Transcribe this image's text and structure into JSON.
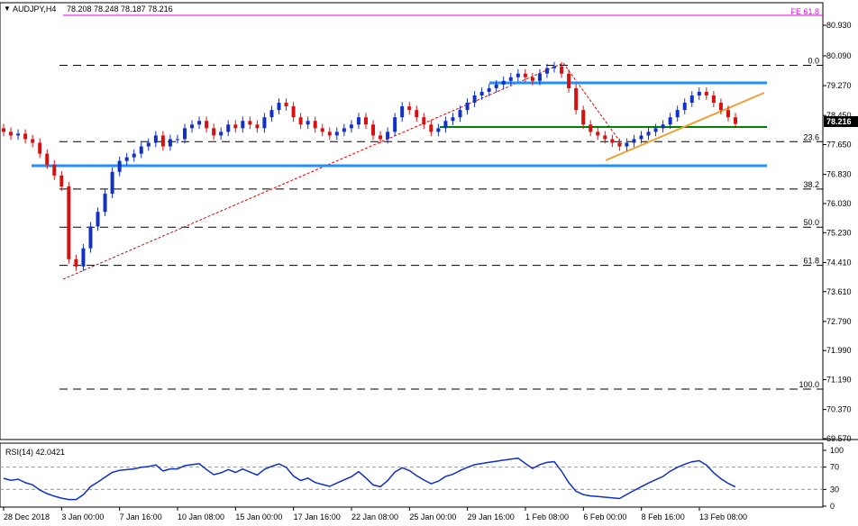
{
  "header": {
    "symbol": "AUDJPY,H4",
    "ohlc": "78.208 78.248 78.187 78.216",
    "fe_label": "FE 61.8"
  },
  "price_axis": {
    "ticks": [
      "80.930",
      "80.090",
      "79.270",
      "78.450",
      "77.650",
      "76.830",
      "76.030",
      "75.230",
      "74.410",
      "73.610",
      "72.790",
      "71.990",
      "71.190",
      "70.370",
      "69.570"
    ],
    "current": "78.216",
    "ylim": [
      69.57,
      80.93
    ]
  },
  "fibonacci": [
    {
      "label": "0.0",
      "price": 79.83
    },
    {
      "label": "23.6",
      "price": 77.73
    },
    {
      "label": "38.2",
      "price": 76.43
    },
    {
      "label": "50.0",
      "price": 75.38
    },
    {
      "label": "61.8",
      "price": 74.33
    },
    {
      "label": "100.0",
      "price": 70.93
    }
  ],
  "rsi": {
    "label": "RSI(14) 42.0421",
    "ticks": [
      "100",
      "70",
      "30",
      "0"
    ],
    "ylim": [
      0,
      100
    ]
  },
  "time_axis": [
    "28 Dec 2018",
    "3 Jan 00:00",
    "7 Jan 16:00",
    "10 Jan 08:00",
    "15 Jan 00:00",
    "17 Jan 16:00",
    "22 Jan 08:00",
    "25 Jan 00:00",
    "29 Jan 16:00",
    "1 Feb 08:00",
    "6 Feb 00:00",
    "8 Feb 16:00",
    "13 Feb 08:00"
  ],
  "chart_data": {
    "type": "candlestick",
    "instrument": "AUDJPY",
    "timeframe": "H4",
    "y_range": [
      69.57,
      80.93
    ],
    "horizontal_levels": [
      {
        "price": 79.25,
        "color": "#1e90ff"
      },
      {
        "price": 78.0,
        "color": "#008000"
      },
      {
        "price": 77.0,
        "color": "#1e90ff"
      }
    ],
    "closes": [
      78.0,
      77.9,
      77.95,
      77.8,
      77.7,
      77.4,
      77.1,
      76.8,
      76.5,
      74.5,
      74.3,
      74.8,
      75.4,
      75.8,
      76.3,
      76.9,
      77.2,
      77.3,
      77.4,
      77.6,
      77.7,
      77.9,
      77.6,
      77.8,
      77.8,
      78.1,
      78.2,
      78.3,
      78.1,
      77.9,
      78.0,
      78.2,
      78.1,
      78.3,
      78.2,
      78.1,
      78.4,
      78.6,
      78.8,
      78.7,
      78.4,
      78.2,
      78.3,
      78.1,
      78.0,
      77.9,
      78.0,
      78.1,
      78.2,
      78.4,
      78.2,
      77.9,
      77.8,
      78.0,
      78.4,
      78.7,
      78.6,
      78.4,
      78.2,
      78.0,
      78.1,
      78.3,
      78.4,
      78.6,
      78.8,
      79.0,
      79.1,
      79.2,
      79.3,
      79.4,
      79.5,
      79.6,
      79.5,
      79.4,
      79.6,
      79.75,
      79.8,
      79.6,
      79.2,
      78.6,
      78.2,
      78.0,
      77.9,
      77.8,
      77.7,
      77.6,
      77.7,
      77.8,
      77.9,
      78.0,
      78.1,
      78.2,
      78.4,
      78.6,
      78.8,
      79.0,
      79.1,
      79.0,
      78.8,
      78.6,
      78.4,
      78.22
    ]
  }
}
